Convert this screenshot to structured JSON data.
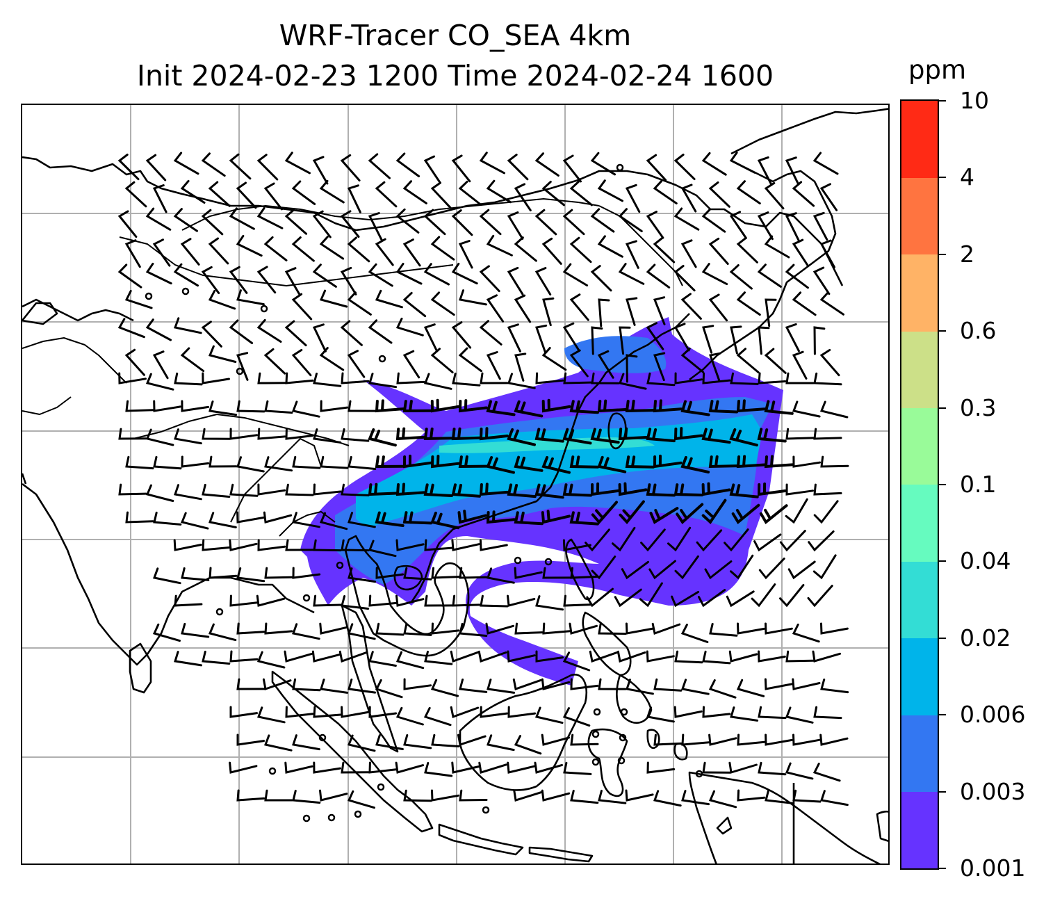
{
  "title": {
    "line1": "WRF-Tracer CO_SEA 4km",
    "line2": "Init 2024-02-23 1200 Time 2024-02-24 1600"
  },
  "colorbar": {
    "unit": "ppm",
    "levels": [
      {
        "label": "0.001",
        "color": "#6633ff"
      },
      {
        "label": "0.003",
        "color": "#3377f2"
      },
      {
        "label": "0.006",
        "color": "#00b4ea"
      },
      {
        "label": "0.02",
        "color": "#33ddd5"
      },
      {
        "label": "0.04",
        "color": "#66fbbf"
      },
      {
        "label": "0.1",
        "color": "#99fb99"
      },
      {
        "label": "0.3",
        "color": "#cce088"
      },
      {
        "label": "0.6",
        "color": "#ffb366"
      },
      {
        "label": "2",
        "color": "#ff7440"
      },
      {
        "label": "4",
        "color": "#ff2a15"
      },
      {
        "label": "10",
        "color": null
      }
    ]
  },
  "map": {
    "gridlines": true,
    "gridline_color": "#b0b0b0",
    "coastline_color": "#000000",
    "field_name": "CO_SEA tracer",
    "features": [
      "coastlines",
      "country-borders",
      "wind-barbs",
      "calm-circles",
      "tracer-plume"
    ]
  }
}
